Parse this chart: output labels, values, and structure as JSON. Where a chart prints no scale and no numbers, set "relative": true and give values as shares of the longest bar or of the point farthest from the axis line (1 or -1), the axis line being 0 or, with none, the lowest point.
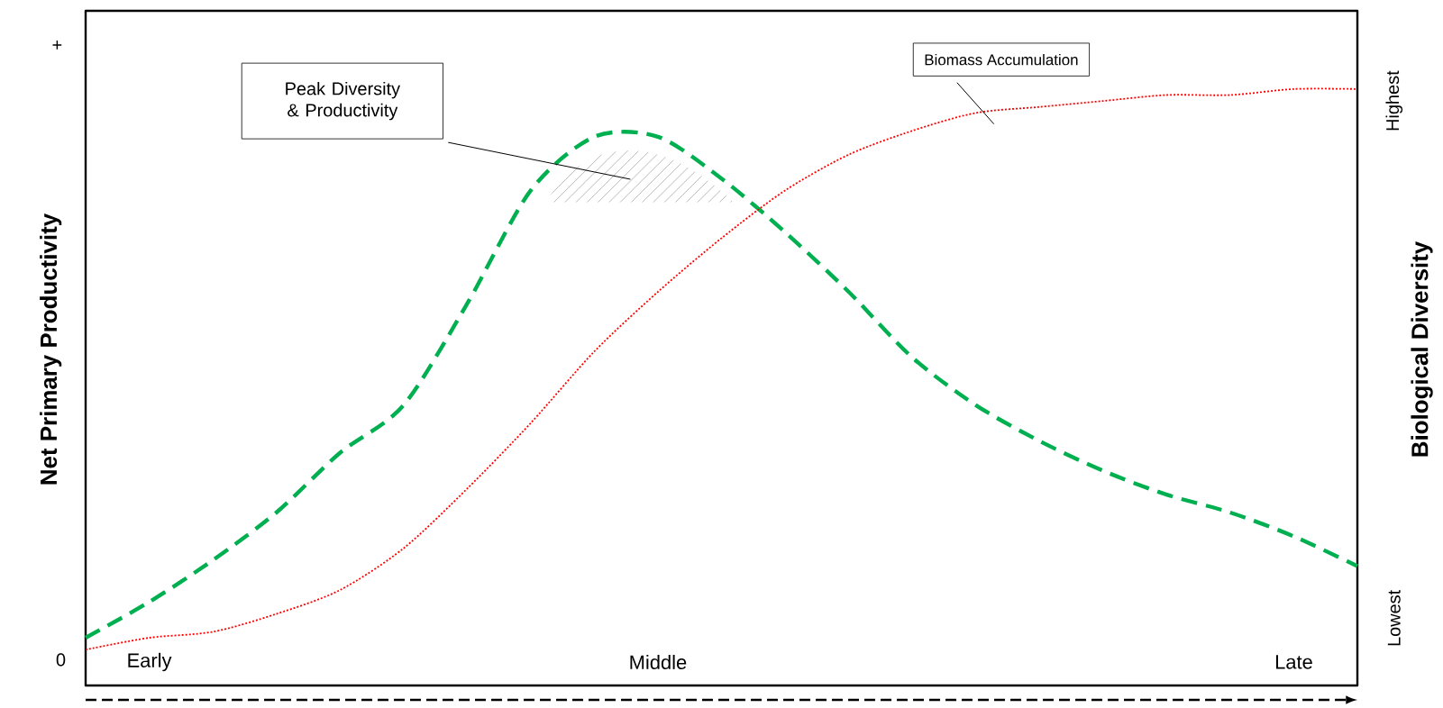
{
  "chart_data": {
    "type": "line",
    "relative": true,
    "categories": [
      null,
      "Early",
      null,
      null,
      null,
      null,
      null,
      null,
      null,
      "Middle",
      null,
      null,
      null,
      null,
      null,
      null,
      null,
      null,
      null,
      "Late",
      null
    ],
    "ylabel": "Net Primary Productivity",
    "y2label": "Biological Diversity",
    "annotations": [
      "+",
      "0",
      "Highest",
      "Lowest",
      "Peak Diversity & Productivity"
    ],
    "series": [
      {
        "color": "#00b050",
        "line_style": "dashed",
        "values": [
          0.08,
          0.14,
          0.21,
          0.29,
          0.39,
          0.47,
          0.64,
          0.83,
          0.92,
          0.92,
          0.85,
          0.76,
          0.66,
          0.55,
          0.47,
          0.41,
          0.36,
          0.32,
          0.29,
          0.25,
          0.2
        ]
      },
      {
        "name": "Biomass Accumulation",
        "color": "#ff0000",
        "line_style": "dotted",
        "values": [
          0.06,
          0.08,
          0.09,
          0.12,
          0.16,
          0.23,
          0.33,
          0.44,
          0.56,
          0.66,
          0.75,
          0.83,
          0.89,
          0.93,
          0.96,
          0.97,
          0.98,
          0.99,
          0.99,
          1.0,
          1.0
        ]
      }
    ]
  }
}
